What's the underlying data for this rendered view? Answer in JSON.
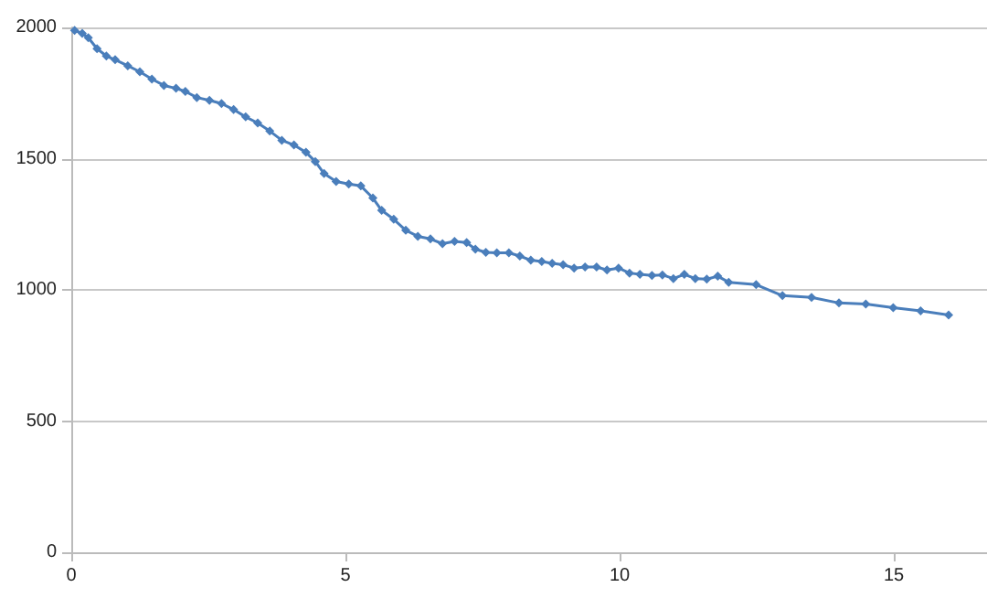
{
  "chart_data": {
    "type": "line",
    "color": "#4a7ebb",
    "marker": "diamond",
    "grid": "y",
    "xlim": [
      0,
      16.7
    ],
    "xticks": [
      0,
      5,
      10,
      15
    ],
    "ylim": [
      0,
      2000
    ],
    "yticks": [
      0,
      500,
      1000,
      1500,
      2000
    ],
    "x": [
      0.06,
      0.2,
      0.31,
      0.47,
      0.64,
      0.8,
      1.03,
      1.25,
      1.47,
      1.69,
      1.91,
      2.08,
      2.29,
      2.52,
      2.74,
      2.96,
      3.18,
      3.4,
      3.62,
      3.84,
      4.06,
      4.28,
      4.45,
      4.61,
      4.83,
      5.06,
      5.28,
      5.5,
      5.66,
      5.88,
      6.1,
      6.32,
      6.55,
      6.77,
      6.99,
      7.21,
      7.37,
      7.56,
      7.76,
      7.98,
      8.18,
      8.38,
      8.58,
      8.77,
      8.97,
      9.17,
      9.37,
      9.58,
      9.77,
      9.98,
      10.18,
      10.37,
      10.59,
      10.78,
      10.98,
      11.18,
      11.38,
      11.59,
      11.79,
      11.99,
      12.49,
      12.97,
      13.5,
      14.0,
      14.49,
      14.99,
      15.49,
      16.0
    ],
    "values": [
      1989,
      1977,
      1961,
      1919,
      1891,
      1877,
      1854,
      1831,
      1803,
      1779,
      1768,
      1756,
      1733,
      1722,
      1710,
      1687,
      1659,
      1636,
      1605,
      1570,
      1552,
      1524,
      1489,
      1443,
      1413,
      1403,
      1396,
      1350,
      1303,
      1269,
      1227,
      1204,
      1194,
      1176,
      1185,
      1180,
      1155,
      1143,
      1141,
      1141,
      1129,
      1113,
      1108,
      1101,
      1096,
      1083,
      1087,
      1087,
      1076,
      1083,
      1064,
      1059,
      1055,
      1057,
      1043,
      1059,
      1043,
      1041,
      1052,
      1029,
      1020,
      978,
      971,
      950,
      946,
      932,
      920,
      904
    ]
  }
}
